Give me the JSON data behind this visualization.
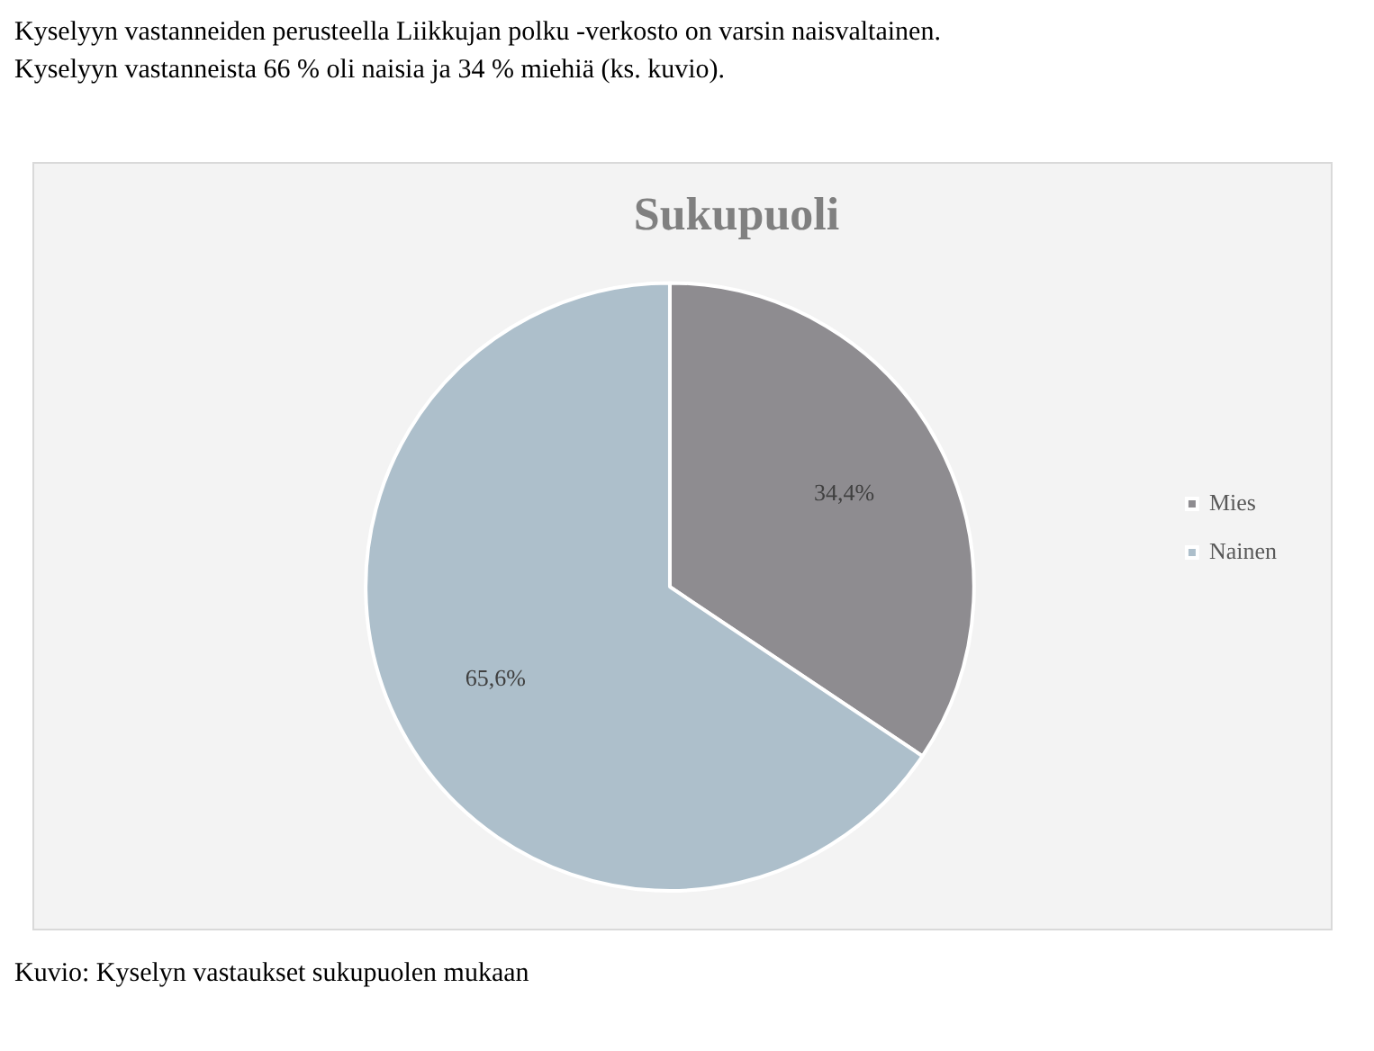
{
  "chart_data": {
    "type": "pie",
    "title": "Sukupuoli",
    "categories": [
      "Mies",
      "Nainen"
    ],
    "values": [
      34.4,
      65.6
    ],
    "colors": [
      "#8e8c90",
      "#adbfcb"
    ],
    "value_labels": [
      "34,4%",
      "65,6%"
    ],
    "legend": "right",
    "annotations": [
      "Kyselyyn vastanneiden perusteella Liikkujan polku -verkosto on varsin naisvaltainen.",
      "Kyselyyn vastanneista 66 % oli naisia ja 34 % miehiä (ks. kuvio).",
      "Kuvio: Kyselyn vastaukset sukupuolen mukaan"
    ]
  }
}
